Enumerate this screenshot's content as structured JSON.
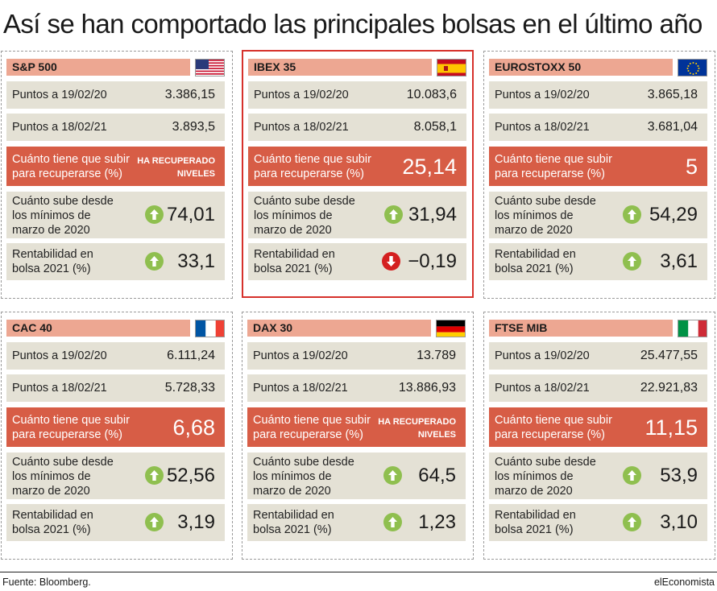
{
  "title": "Así se han comportado las principales bolsas en el último año",
  "labels": {
    "points_2020": "Puntos a 19/02/20",
    "points_2021": "Puntos a 18/02/21",
    "to_recover": "Cuánto tiene que subir para recuperarse (%)",
    "rise_from_lows": "Cuánto sube desde los mínimos de marzo de 2020",
    "ytd_return": "Rentabilidad en bolsa 2021 (%)"
  },
  "colors": {
    "header_salmon": "#eda792",
    "row_beige": "#e4e1d5",
    "row_red": "#d75d46",
    "highlight_border": "#d6312b",
    "up_green": "#8fbf4f",
    "down_red": "#d42020"
  },
  "indices": [
    {
      "name": "S&P 500",
      "flag_icon": "usa-flag-icon",
      "points_2020": "3.386,15",
      "points_2021": "3.893,5",
      "to_recover": "HA RECUPERADO NIVELES",
      "rise_from_lows": "74,01",
      "rise_icon": "up-arrow-icon",
      "ytd_return": "33,1",
      "ytd_icon": "up-arrow-icon"
    },
    {
      "name": "IBEX 35",
      "flag_icon": "spain-flag-icon",
      "highlighted": true,
      "points_2020": "10.083,6",
      "points_2021": "8.058,1",
      "to_recover": "25,14",
      "rise_from_lows": "31,94",
      "rise_icon": "up-arrow-icon",
      "ytd_return": "−0,19",
      "ytd_icon": "down-arrow-icon"
    },
    {
      "name": "EUROSTOXX 50",
      "flag_icon": "eu-flag-icon",
      "points_2020": "3.865,18",
      "points_2021": "3.681,04",
      "to_recover": "5",
      "rise_from_lows": "54,29",
      "rise_icon": "up-arrow-icon",
      "ytd_return": "3,61",
      "ytd_icon": "up-arrow-icon"
    },
    {
      "name": "CAC 40",
      "flag_icon": "france-flag-icon",
      "points_2020": "6.111,24",
      "points_2021": "5.728,33",
      "to_recover": "6,68",
      "rise_from_lows": "52,56",
      "rise_icon": "up-arrow-icon",
      "ytd_return": "3,19",
      "ytd_icon": "up-arrow-icon"
    },
    {
      "name": "DAX 30",
      "flag_icon": "germany-flag-icon",
      "points_2020": "13.789",
      "points_2021": "13.886,93",
      "to_recover": "HA RECUPERADO NIVELES",
      "rise_from_lows": "64,5",
      "rise_icon": "up-arrow-icon",
      "ytd_return": "1,23",
      "ytd_icon": "up-arrow-icon"
    },
    {
      "name": "FTSE MIB",
      "flag_icon": "italy-flag-icon",
      "points_2020": "25.477,55",
      "points_2021": "22.921,83",
      "to_recover": "11,15",
      "rise_from_lows": "53,9",
      "rise_icon": "up-arrow-icon",
      "ytd_return": "3,10",
      "ytd_icon": "up-arrow-icon"
    }
  ],
  "footer": {
    "source": "Fuente: Bloomberg.",
    "brand": "elEconomista"
  }
}
